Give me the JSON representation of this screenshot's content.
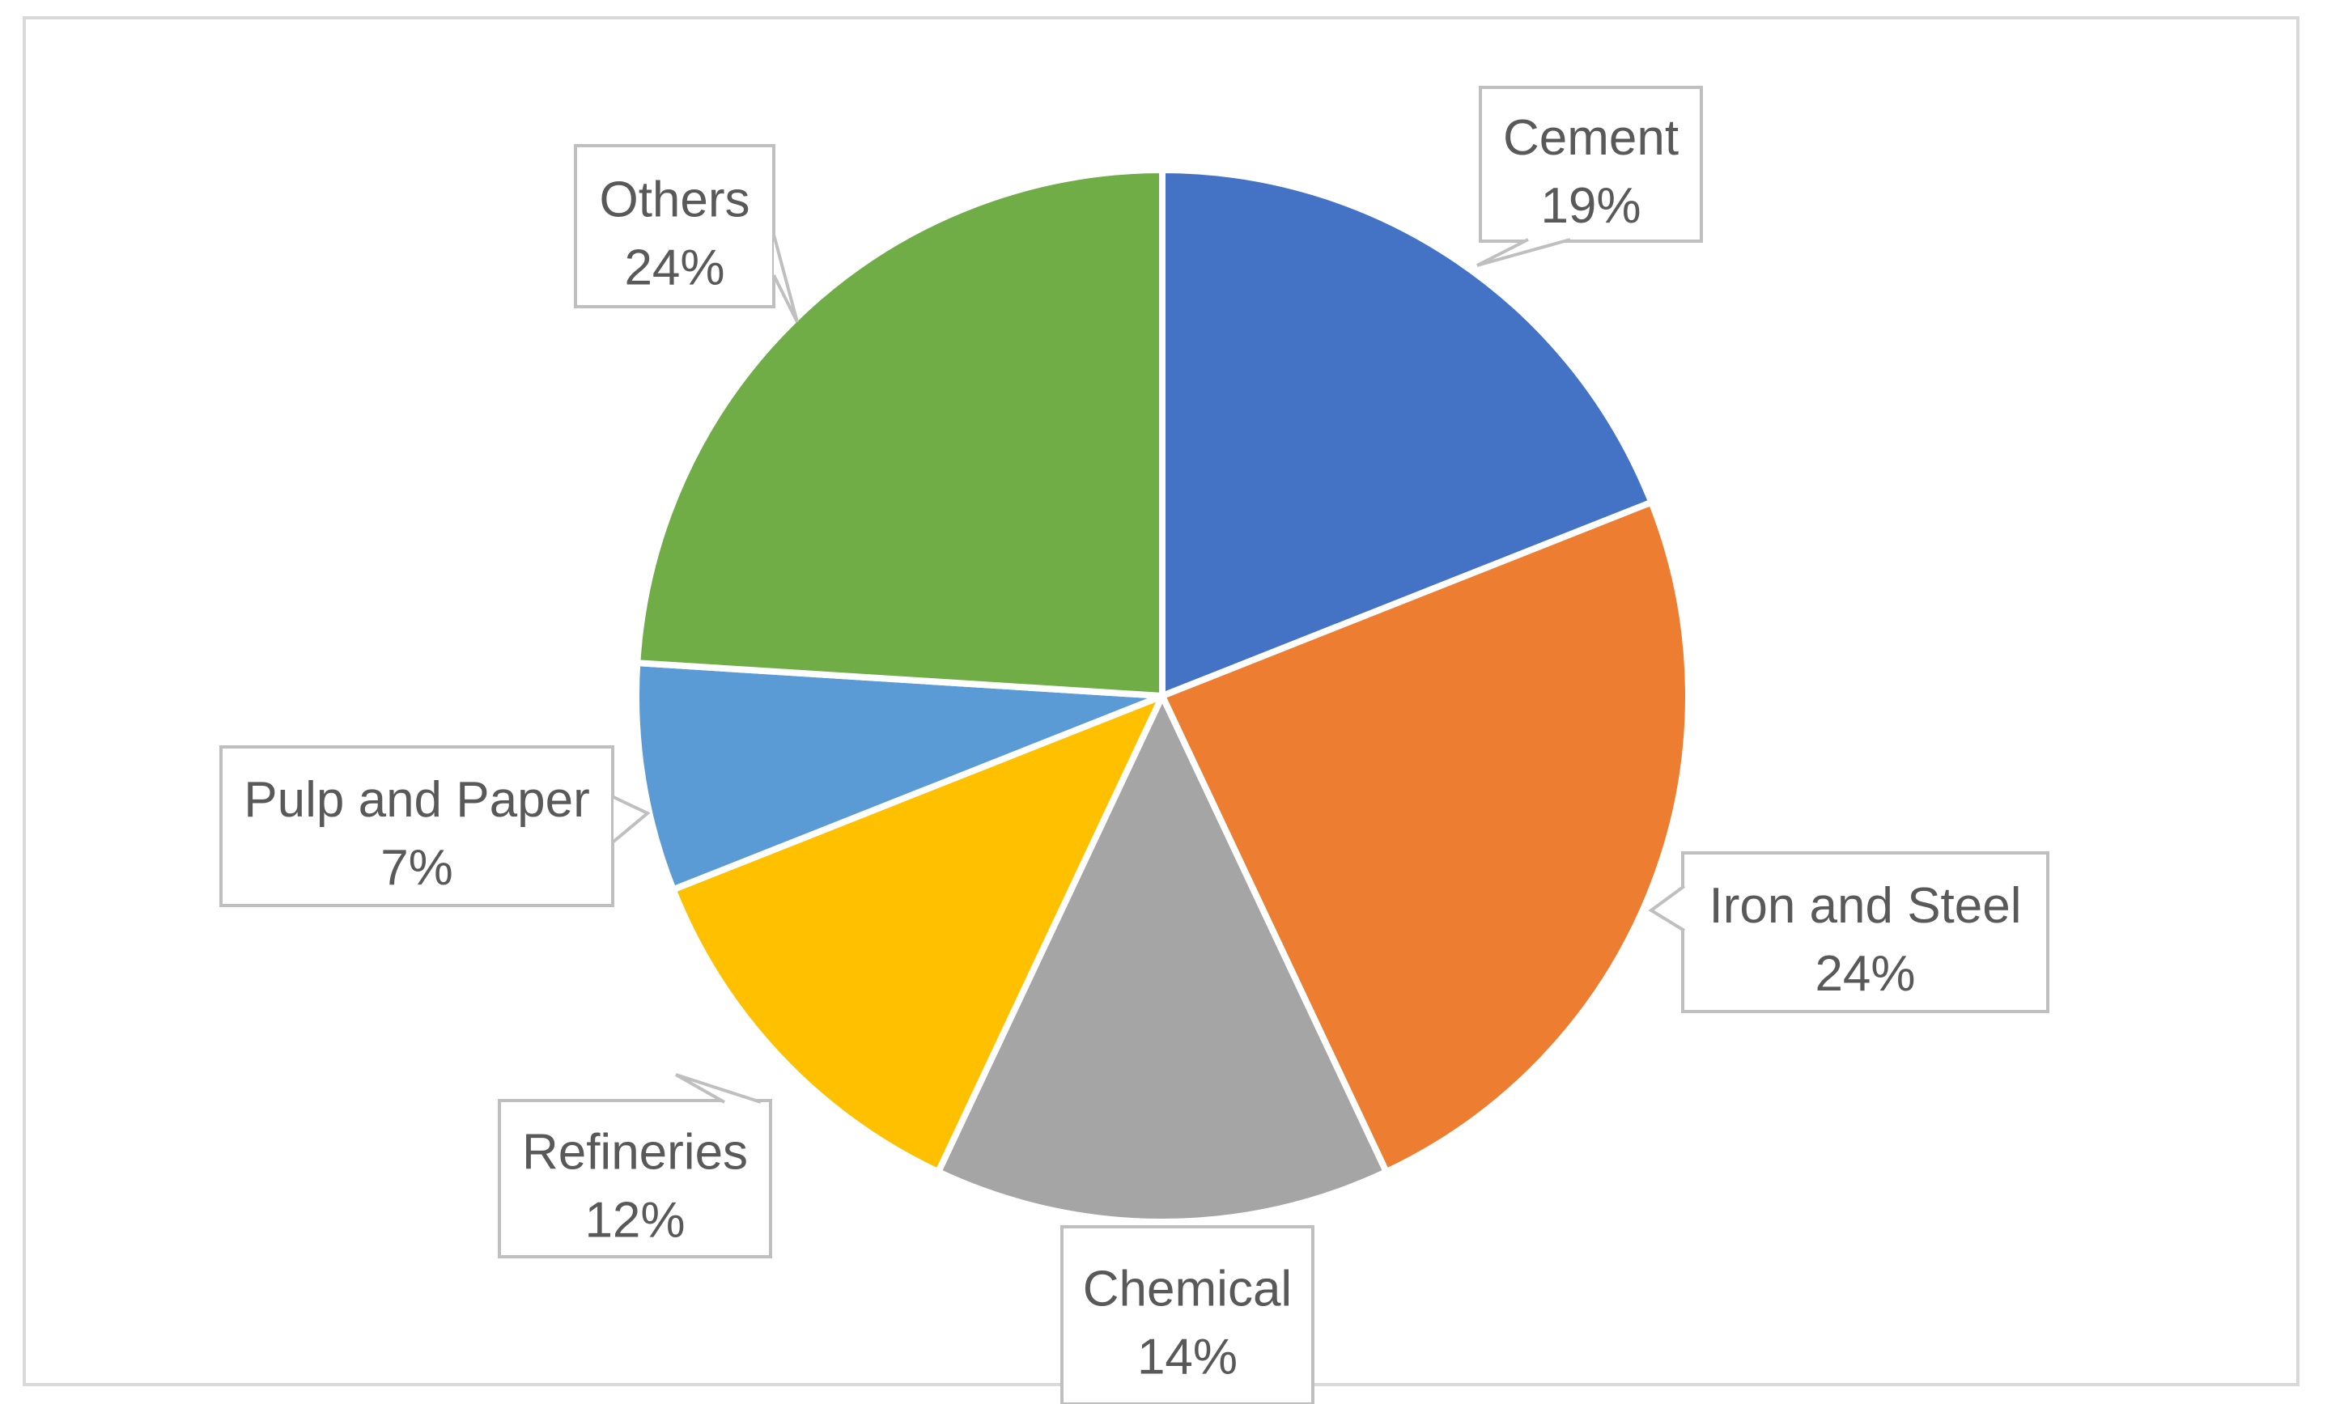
{
  "chart_data": {
    "type": "pie",
    "title": "",
    "start_angle_deg": 0,
    "direction": "clockwise",
    "slices": [
      {
        "label": "Cement",
        "value": 19,
        "display": "19%",
        "color": "#4472C4"
      },
      {
        "label": "Iron and Steel",
        "value": 24,
        "display": "24%",
        "color": "#ED7D31"
      },
      {
        "label": "Chemical",
        "value": 14,
        "display": "14%",
        "color": "#A5A5A5"
      },
      {
        "label": "Refineries",
        "value": 12,
        "display": "12%",
        "color": "#FFC000"
      },
      {
        "label": "Pulp and Paper",
        "value": 7,
        "display": "7%",
        "color": "#5B9BD5"
      },
      {
        "label": "Others",
        "value": 24,
        "display": "24%",
        "color": "#70AD47"
      }
    ],
    "data_labels": "callouts",
    "legend": "none"
  }
}
